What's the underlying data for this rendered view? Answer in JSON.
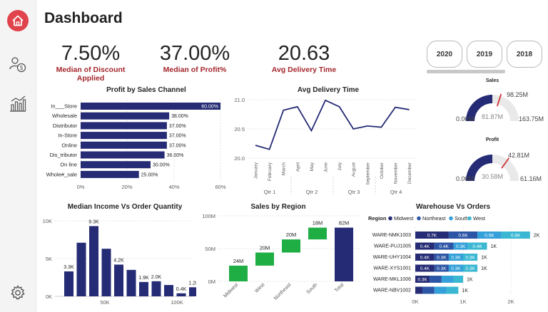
{
  "title": "Dashboard",
  "sidebar": {
    "home": "home-icon",
    "customer": "customer-money-icon",
    "analytics": "chart-icon",
    "settings": "gear-icon"
  },
  "kpis": [
    {
      "value": "7.50%",
      "label": "Median of Discount Applied"
    },
    {
      "value": "37.00%",
      "label": "Median of Profit%"
    },
    {
      "value": "20.63",
      "label": "Avg Delivery Time"
    }
  ],
  "years": [
    "2020",
    "2019",
    "2018"
  ],
  "profit_channel": {
    "title": "Profit by Sales Channel",
    "categories": [
      "In___Store",
      "Wholesale",
      "Distributor",
      "In-Store",
      "Online",
      "Dis_tributor",
      "On line",
      "Whole#_sale"
    ],
    "labels": [
      "60.00%",
      "38.00%",
      "37.00%",
      "37.00%",
      "37.00%",
      "36.00%",
      "30.00%",
      "25.00%"
    ],
    "ticks": [
      "0%",
      "20%",
      "40%",
      "60%"
    ]
  },
  "delivery": {
    "title": "Avg Delivery Time",
    "months": [
      "January",
      "February",
      "March",
      "April",
      "May",
      "June",
      "July",
      "August",
      "September",
      "October",
      "November",
      "December"
    ],
    "quarters": [
      "Qtr 1",
      "Qtr 2",
      "Qtr 3",
      "Qtr 4"
    ],
    "yticks": [
      "21.0",
      "20.5",
      "20.0"
    ]
  },
  "sales_gauge": {
    "title": "Sales",
    "min": "0.00M",
    "value": "81.87M",
    "target": "98.25M",
    "max": "163.75M"
  },
  "profit_gauge": {
    "title": "Profit",
    "min": "0.00M",
    "value": "30.58M",
    "target": "42.81M",
    "max": "61.16M"
  },
  "income": {
    "title": "Median Income Vs Order Quantity",
    "labels": [
      "3.3K",
      "9.3K",
      "4.2K",
      "1.9K",
      "2.0K",
      "0.4K",
      "1.2K"
    ],
    "yticks": [
      "10K",
      "5K",
      "0K"
    ],
    "xticks": [
      "50K",
      "100K"
    ]
  },
  "region": {
    "title": "Sales by Region",
    "labels": [
      "24M",
      "20M",
      "20M",
      "18M",
      "82M"
    ],
    "categories": [
      "Midwest",
      "West",
      "Northeast",
      "South",
      "Total"
    ],
    "yticks": [
      "100M",
      "50M",
      "0M"
    ]
  },
  "warehouse": {
    "title": "Warehouse Vs Orders",
    "legend_title": "Region",
    "legend": [
      "Midwest",
      "Northeast",
      "South",
      "West"
    ],
    "rows": [
      "WARE-NMK1003",
      "WARE-PUJ1005",
      "WARE-UHY1004",
      "WARE-XYS1001",
      "WARE-MKL1006",
      "WARE-NBV1002"
    ],
    "segment_labels": [
      [
        "0.7K",
        "0.6K",
        "0.5K",
        "0.6K"
      ],
      [
        "0.4K",
        "0.4K",
        "0.3K",
        "0.4K"
      ],
      [
        "0.4K",
        "0.3K",
        "0.3K",
        "0.3K"
      ],
      [
        "0.4K",
        "0.3K",
        "0.3K",
        "0.3K"
      ],
      [
        "0.3K",
        "",
        "",
        ""
      ],
      [
        "",
        "",
        "",
        ""
      ]
    ],
    "totals": [
      "2K",
      "1K",
      "1K",
      "1K",
      "1K",
      "1K"
    ],
    "xticks": [
      "0K",
      "1K",
      "2K"
    ]
  },
  "colors": {
    "navy": "#252b74",
    "blue": "#2d55a5",
    "light": "#33a0d9",
    "cyan": "#3ab7d2",
    "green": "#1fae44",
    "red": "#a4262c"
  },
  "chart_data": [
    {
      "type": "bar",
      "title": "Profit by Sales Channel",
      "categories": [
        "In___Store",
        "Wholesale",
        "Distributor",
        "In-Store",
        "Online",
        "Dis_tributor",
        "On line",
        "Whole#_sale"
      ],
      "values": [
        60,
        38,
        37,
        37,
        37,
        36,
        30,
        25
      ],
      "xlim": [
        0,
        60
      ]
    },
    {
      "type": "line",
      "title": "Avg Delivery Time",
      "x": [
        "January",
        "February",
        "March",
        "April",
        "May",
        "June",
        "July",
        "August",
        "September",
        "October",
        "November",
        "December"
      ],
      "values": [
        20.22,
        20.15,
        20.82,
        20.88,
        20.47,
        20.99,
        20.88,
        20.5,
        20.55,
        20.53,
        20.87,
        20.83
      ],
      "ylim": [
        20.0,
        21.0
      ]
    },
    {
      "type": "bar",
      "title": "Median Income Vs Order Quantity",
      "values": [
        3.3,
        7.1,
        9.3,
        6.3,
        4.2,
        3.5,
        1.9,
        2.0,
        1.5,
        0.4,
        1.2
      ],
      "ylim": [
        0,
        10
      ]
    },
    {
      "type": "bar",
      "title": "Sales by Region",
      "categories": [
        "Midwest",
        "West",
        "Northeast",
        "South",
        "Total"
      ],
      "values": [
        24,
        20,
        20,
        18,
        82
      ],
      "ylim": [
        0,
        100
      ]
    },
    {
      "type": "bar",
      "title": "Warehouse Vs Orders",
      "categories": [
        "WARE-NMK1003",
        "WARE-PUJ1005",
        "WARE-UHY1004",
        "WARE-XYS1001",
        "WARE-MKL1006",
        "WARE-NBV1002"
      ],
      "series": [
        {
          "name": "Midwest",
          "values": [
            0.7,
            0.4,
            0.4,
            0.4,
            0.3,
            0.15
          ]
        },
        {
          "name": "Northeast",
          "values": [
            0.6,
            0.4,
            0.3,
            0.3,
            0.25,
            0.25
          ]
        },
        {
          "name": "South",
          "values": [
            0.5,
            0.3,
            0.3,
            0.3,
            0.25,
            0.25
          ]
        },
        {
          "name": "West",
          "values": [
            0.6,
            0.4,
            0.3,
            0.3,
            0.2,
            0.25
          ]
        }
      ],
      "xlim": [
        0,
        2.5
      ]
    },
    {
      "type": "gauge",
      "title": "Sales",
      "min": 0,
      "value": 81.87,
      "target": 98.25,
      "max": 163.75
    },
    {
      "type": "gauge",
      "title": "Profit",
      "min": 0,
      "value": 30.58,
      "target": 42.81,
      "max": 61.16
    }
  ]
}
